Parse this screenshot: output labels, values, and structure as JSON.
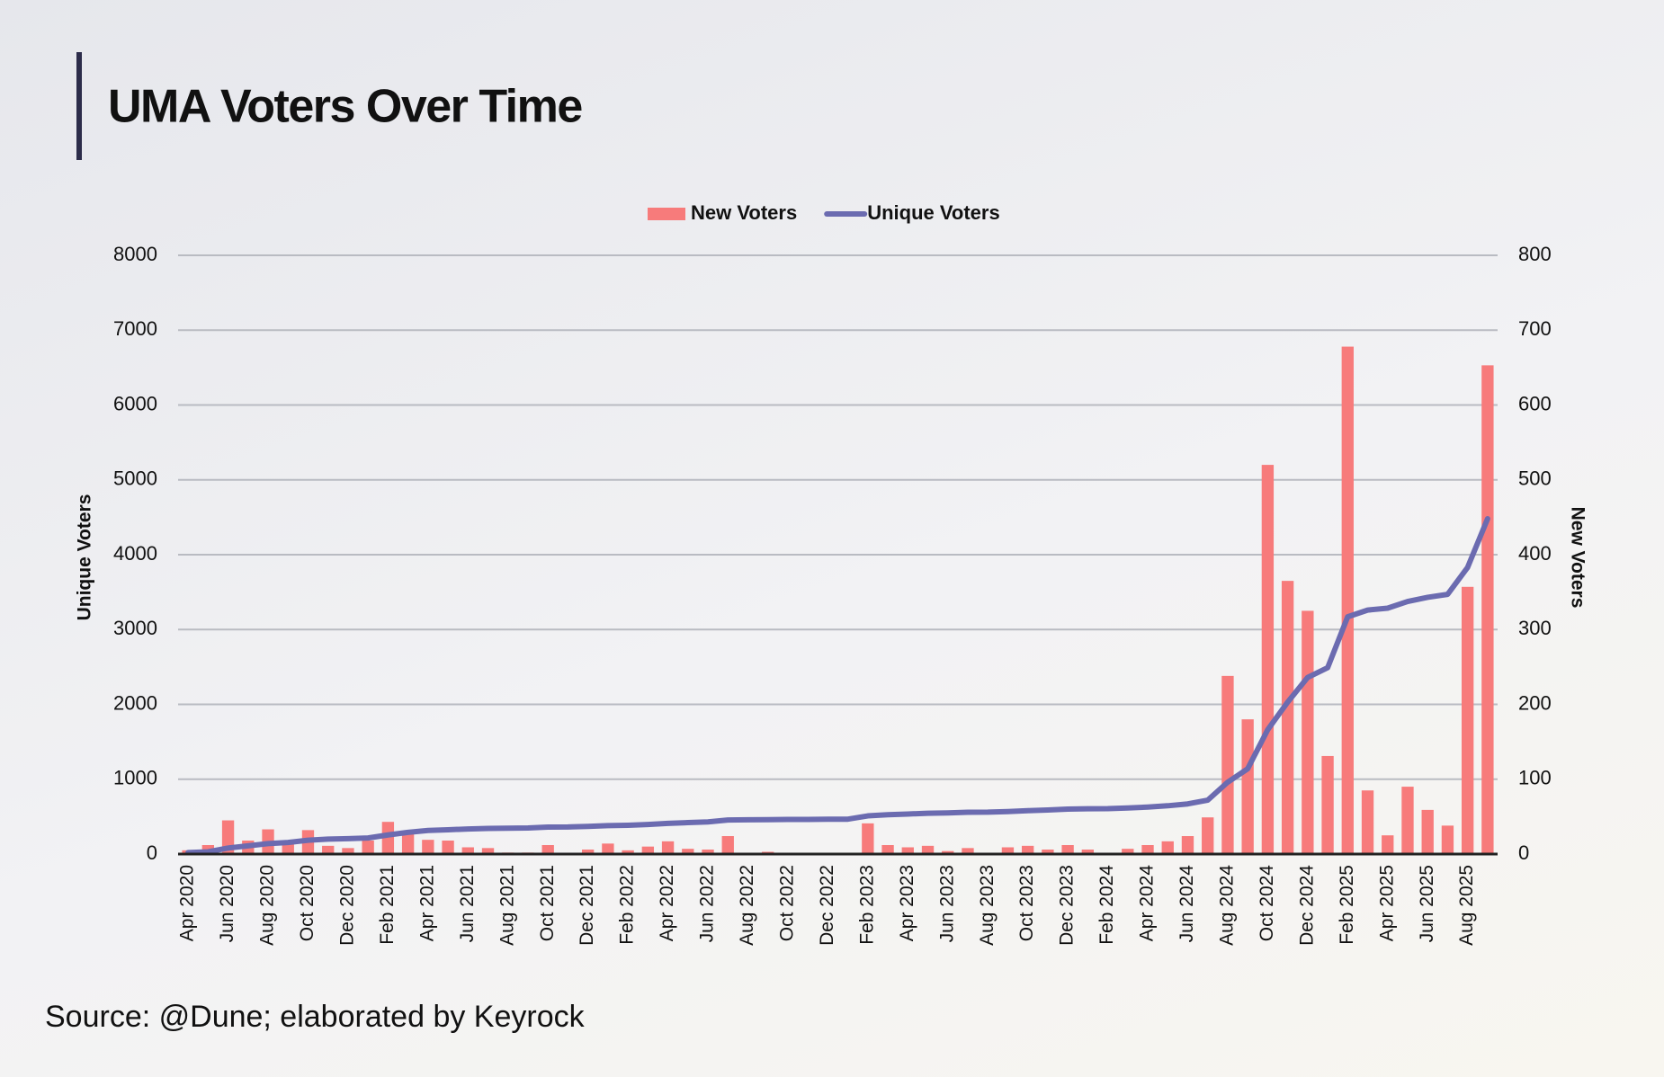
{
  "chart_data": {
    "type": "bar_line",
    "title": "UMA Voters Over Time",
    "source": "Source: @Dune; elaborated by Keyrock",
    "y_label": "Unique Voters",
    "y2_label": "New Voters",
    "categories": [
      "Apr 2020",
      null,
      "Jun 2020",
      null,
      "Aug 2020",
      null,
      "Oct 2020",
      null,
      "Dec 2020",
      null,
      "Feb 2021",
      null,
      "Apr 2021",
      null,
      "Jun 2021",
      null,
      "Aug 2021",
      null,
      "Oct 2021",
      null,
      "Dec 2021",
      null,
      "Feb 2022",
      null,
      "Apr 2022",
      null,
      "Jun 2022",
      null,
      "Aug 2022",
      null,
      "Oct 2022",
      null,
      "Dec 2022",
      null,
      "Feb 2023",
      null,
      "Apr 2023",
      null,
      "Jun 2023",
      null,
      "Aug 2023",
      null,
      "Oct 2023",
      null,
      "Dec 2023",
      null,
      "Feb 2024",
      null,
      "Apr 2024",
      null,
      "Jun 2024",
      null,
      "Aug 2024",
      null,
      "Oct 2024",
      null,
      "Dec 2024",
      null,
      "Feb 2025",
      null,
      "Apr 2025",
      null,
      "Jun 2025",
      null,
      "Aug 2025",
      null
    ],
    "series": [
      {
        "name": "New Voters",
        "type": "bar",
        "axis": "y2",
        "color": "#f77b7b",
        "values": [
          5,
          12,
          45,
          18,
          33,
          14,
          32,
          11,
          8,
          18,
          43,
          27,
          19,
          18,
          9,
          8,
          2,
          2,
          12,
          0,
          6,
          14,
          5,
          10,
          17,
          7,
          6,
          24,
          1,
          3,
          1,
          1,
          1,
          1,
          41,
          12,
          9,
          11,
          4,
          8,
          1,
          9,
          11,
          6,
          12,
          6,
          1,
          7,
          12,
          17,
          24,
          49,
          238,
          180,
          520,
          365,
          325,
          131,
          678,
          85,
          25,
          90,
          59,
          38,
          357,
          653
        ]
      },
      {
        "name": "Unique Voters",
        "type": "line",
        "axis": "y",
        "color": "#6b6bb0",
        "values": [
          20,
          30,
          80,
          110,
          140,
          155,
          185,
          200,
          205,
          215,
          255,
          290,
          315,
          325,
          335,
          342,
          345,
          348,
          360,
          362,
          370,
          380,
          385,
          395,
          410,
          420,
          430,
          455,
          458,
          460,
          462,
          463,
          465,
          466,
          510,
          525,
          535,
          545,
          550,
          558,
          560,
          568,
          580,
          588,
          600,
          605,
          606,
          615,
          628,
          645,
          670,
          720,
          960,
          1140,
          1660,
          2030,
          2360,
          2490,
          3170,
          3260,
          3285,
          3375,
          3430,
          3470,
          3830,
          4480
        ]
      }
    ],
    "ylim": [
      0,
      8000
    ],
    "yticks": [
      0,
      1000,
      2000,
      3000,
      4000,
      5000,
      6000,
      7000,
      8000
    ],
    "y2lim": [
      0,
      800
    ],
    "y2ticks": [
      0,
      100,
      200,
      300,
      400,
      500,
      600,
      700,
      800
    ],
    "grid": true,
    "legend": "top"
  }
}
